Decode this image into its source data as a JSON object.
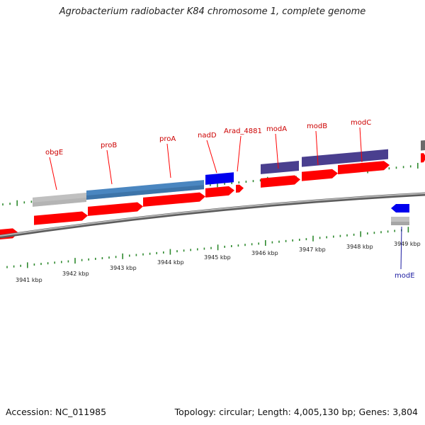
{
  "title": "Agrobacterium radiobacter K84 chromosome 1, complete genome",
  "footer": {
    "accession": "Accession: NC_011985",
    "summary": "Topology: circular; Length: 4,005,130 bp; Genes: 3,804"
  },
  "colors": {
    "forward_cds": "#ff0000",
    "gene_label_forward": "#cc0000",
    "gene_label_reverse": "#1a1aa0",
    "backbone": "#8a8a8a",
    "tick": "#2f8a2f",
    "steelblue_feature": "#4a86c0",
    "blue_feature": "#0000ee",
    "purple_feature": "#4a3f8f",
    "gray_feature": "#c0c0c0"
  },
  "kbp_labels": [
    "3941 kbp",
    "3942 kbp",
    "3943 kbp",
    "3944 kbp",
    "3945 kbp",
    "3946 kbp",
    "3947 kbp",
    "3948 kbp",
    "3949 kbp"
  ],
  "gene_labels": [
    {
      "name": "obgE",
      "strand": "forward"
    },
    {
      "name": "proB",
      "strand": "forward"
    },
    {
      "name": "proA",
      "strand": "forward"
    },
    {
      "name": "nadD",
      "strand": "forward"
    },
    {
      "name": "Arad_4881",
      "strand": "forward"
    },
    {
      "name": "modA",
      "strand": "forward"
    },
    {
      "name": "modB",
      "strand": "forward"
    },
    {
      "name": "modC",
      "strand": "forward"
    },
    {
      "name": "modE",
      "strand": "reverse"
    }
  ]
}
